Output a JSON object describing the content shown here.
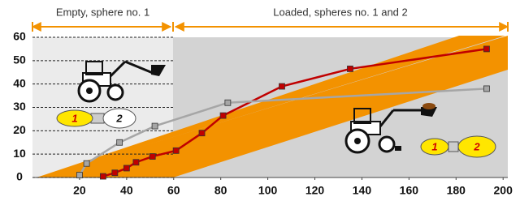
{
  "chart_data": {
    "type": "line",
    "annotations": [
      "Empty, sphere no. 1",
      "Loaded, spheres no. 1 and 2"
    ],
    "sphere_labels": [
      "1",
      "2",
      "1",
      "2"
    ],
    "xlim": [
      0,
      202
    ],
    "ylim": [
      0,
      60
    ],
    "xticks": [
      20,
      40,
      60,
      80,
      100,
      120,
      140,
      160,
      180,
      200
    ],
    "yticks": [
      0,
      10,
      20,
      30,
      40,
      50,
      60
    ],
    "grid": true,
    "series": [
      {
        "color": "#c00000",
        "x": [
          30,
          35,
          40,
          44,
          51,
          61,
          72,
          81,
          106,
          135,
          193
        ],
        "values": [
          0.5,
          2,
          4,
          6.5,
          9,
          11.5,
          19,
          26.5,
          39,
          46.5,
          55
        ]
      },
      {
        "color": "#a6a6a6",
        "x": [
          20,
          23,
          37,
          52,
          83,
          193
        ],
        "values": [
          1,
          6,
          15,
          22,
          32,
          38
        ]
      }
    ]
  }
}
